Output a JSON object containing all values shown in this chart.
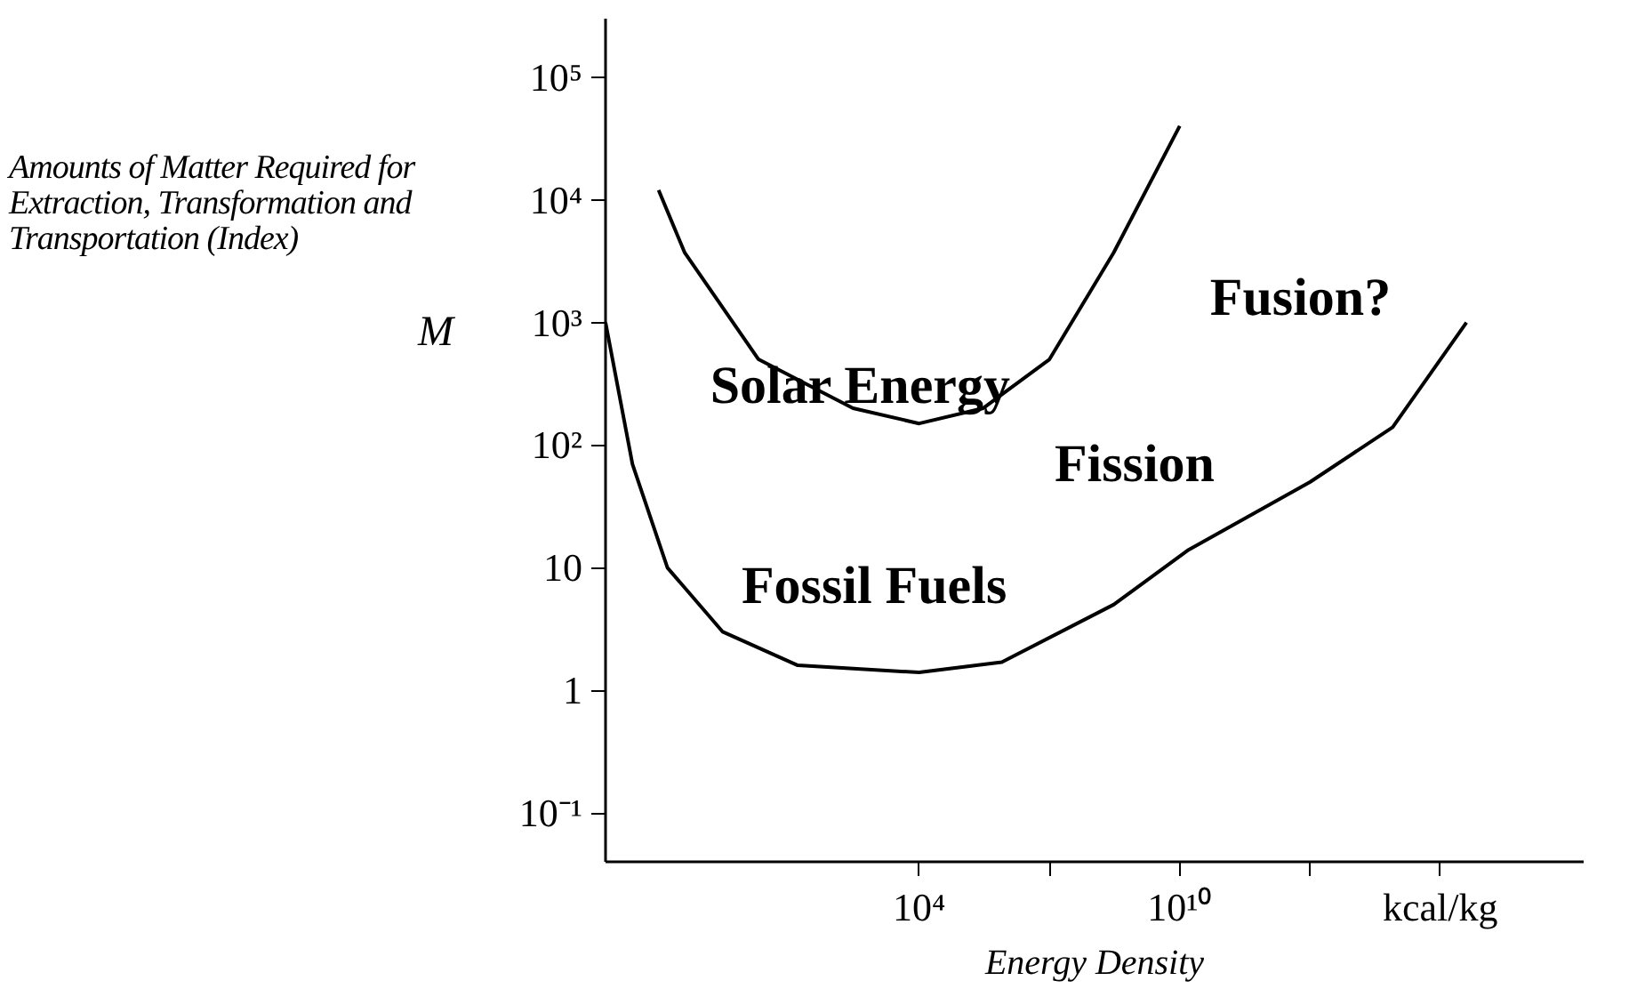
{
  "chart_data": {
    "type": "line",
    "xlabel": "Energy Density",
    "ylabel": "Amounts of Matter Required for Extraction, Transformation and Transportation (Index)",
    "log": "xy",
    "grid": false,
    "marker": "none",
    "line_style": "solid",
    "xlim": [
      0.0006,
      2e+19
    ],
    "ylim": [
      0.04,
      300000
    ],
    "xticks": [
      {
        "value": 10000,
        "label": "10⁴"
      },
      {
        "value": 10000000.0,
        "label": null
      },
      {
        "value": 10000000000.0,
        "label": "10¹⁰"
      },
      {
        "value": 10000000000000.0,
        "label": null
      },
      {
        "value": 1e+16,
        "label": "kcal/kg"
      }
    ],
    "yticks": [
      {
        "value": 0.1,
        "label": "10⁻¹"
      },
      1,
      10,
      {
        "value": 100,
        "label": "10²"
      },
      {
        "value": 1000,
        "label": "10³"
      },
      {
        "value": 10000,
        "label": "10⁴"
      },
      {
        "value": 100000,
        "label": "10⁵"
      }
    ],
    "series": [
      {
        "color": "#000000",
        "x": [
          0.01,
          0.04,
          2,
          300,
          10000,
          300000,
          10000000.0,
          300000000.0,
          10000000000.0
        ],
        "values": [
          12000,
          3700,
          500,
          200,
          150,
          200,
          500,
          3700,
          40000
        ]
      },
      {
        "color": "#000000",
        "x": [
          0.0006,
          0.0025,
          0.016,
          0.3,
          16,
          10000,
          800000,
          300000000.0,
          16000000000.0,
          10000000000000.0,
          800000000000000.0,
          4e+16
        ],
        "values": [
          1000,
          70,
          10,
          3,
          1.6,
          1.4,
          1.7,
          5,
          14,
          50,
          140,
          1000
        ]
      }
    ],
    "annotations": [
      "M",
      "Solar Energy",
      "Fossil Fuels",
      "Fission",
      "Fusion?"
    ]
  }
}
